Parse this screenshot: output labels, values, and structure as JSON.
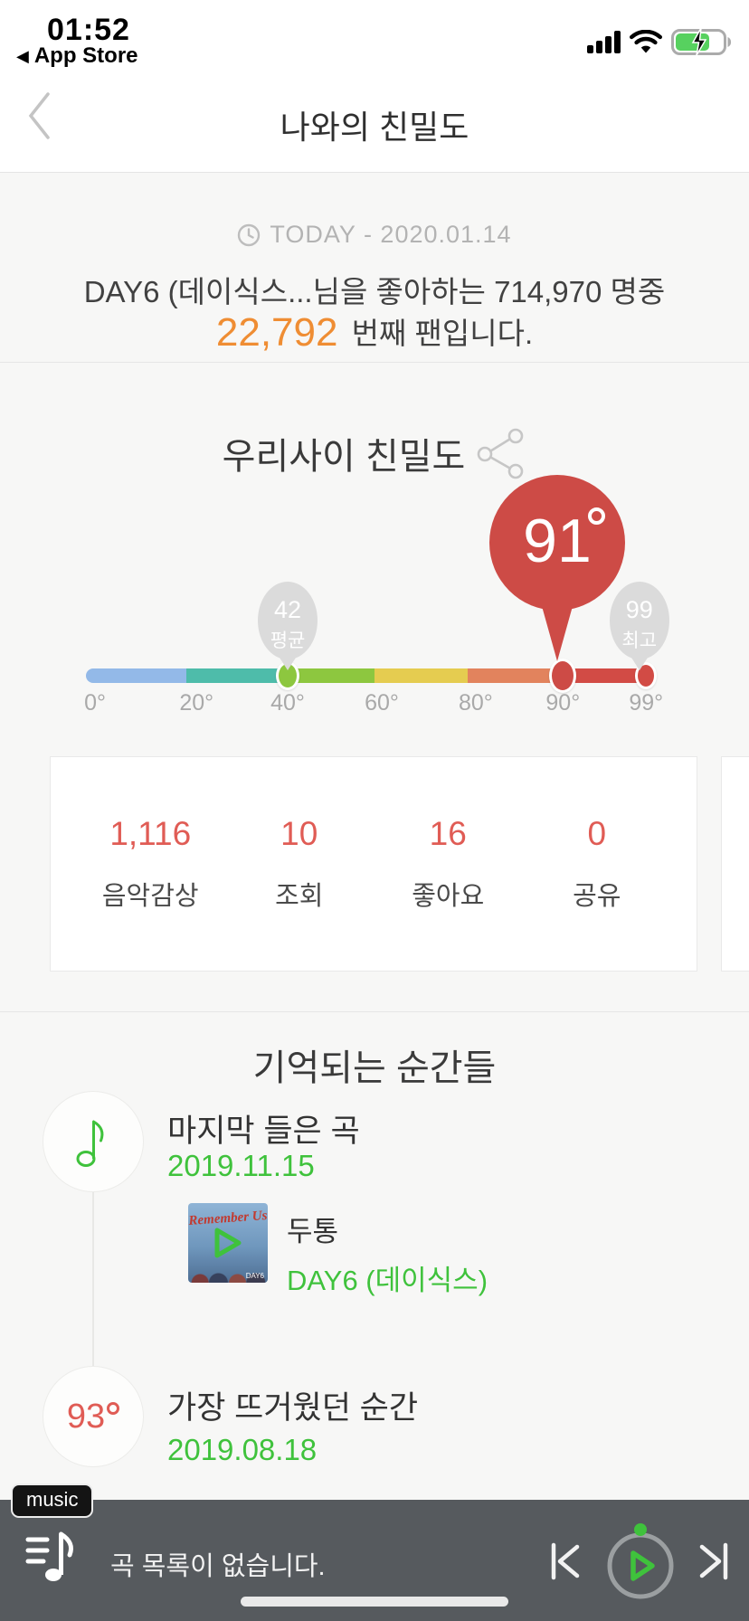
{
  "status_bar": {
    "time": "01:52",
    "back_tri": "◀",
    "back_label": "App Store"
  },
  "nav": {
    "title": "나와의 친밀도"
  },
  "intro": {
    "date_label": "TODAY - 2020.01.14",
    "line1": "DAY6 (데이식스...님을 좋아하는 714,970 명중",
    "rank": "22,792",
    "line2_suffix": "번째 팬입니다."
  },
  "gauge": {
    "title": "우리사이 친밀도",
    "score": {
      "value": "91",
      "pos_pct": 83.7
    },
    "avg": {
      "value": "42",
      "label": "평균",
      "pos_pct": 35.4
    },
    "max": {
      "value": "99",
      "label": "최고",
      "pos_pct": 98.3
    },
    "segments": [
      {
        "color": "#93b9e8",
        "width_pct": 17.6
      },
      {
        "color": "#4ebcaa",
        "width_pct": 17.8
      },
      {
        "color": "#8dc73f",
        "width_pct": 15.2
      },
      {
        "color": "#e5cc50",
        "width_pct": 16.4
      },
      {
        "color": "#e2835d",
        "width_pct": 16.7
      },
      {
        "color": "#d24b45",
        "width_pct": 16.3
      }
    ],
    "ticks": [
      {
        "label": "0°",
        "pos_pct": 1.6
      },
      {
        "label": "20°",
        "pos_pct": 19.4
      },
      {
        "label": "40°",
        "pos_pct": 35.4
      },
      {
        "label": "60°",
        "pos_pct": 51.9
      },
      {
        "label": "80°",
        "pos_pct": 68.4
      },
      {
        "label": "90°",
        "pos_pct": 83.7
      },
      {
        "label": "99°",
        "pos_pct": 98.3
      }
    ]
  },
  "stats": {
    "items": [
      {
        "value": "1,116",
        "label": "음악감상"
      },
      {
        "value": "10",
        "label": "조회"
      },
      {
        "value": "16",
        "label": "좋아요"
      },
      {
        "value": "0",
        "label": "공유"
      }
    ]
  },
  "moments": {
    "title": "기억되는 순간들",
    "items": [
      {
        "title": "마지막 들은 곡",
        "date": "2019.11.15",
        "song": {
          "title": "두통",
          "artist": "DAY6 (데이식스)",
          "album": "Remember Us",
          "album_logo": "DAY6"
        }
      },
      {
        "title": "가장 뜨거웠던 순간",
        "date": "2019.08.18",
        "badge_value": "93"
      }
    ]
  },
  "player": {
    "tag": "music",
    "empty_message": "곡 목록이 없습니다."
  },
  "colors": {
    "accent_green": "#3fc23c",
    "balloon_red": "#cd4b46",
    "stat_red": "#e05c55",
    "rank_orange": "#ef8d33",
    "player_bg": "#565a5e",
    "battery_green": "#57d15f"
  }
}
